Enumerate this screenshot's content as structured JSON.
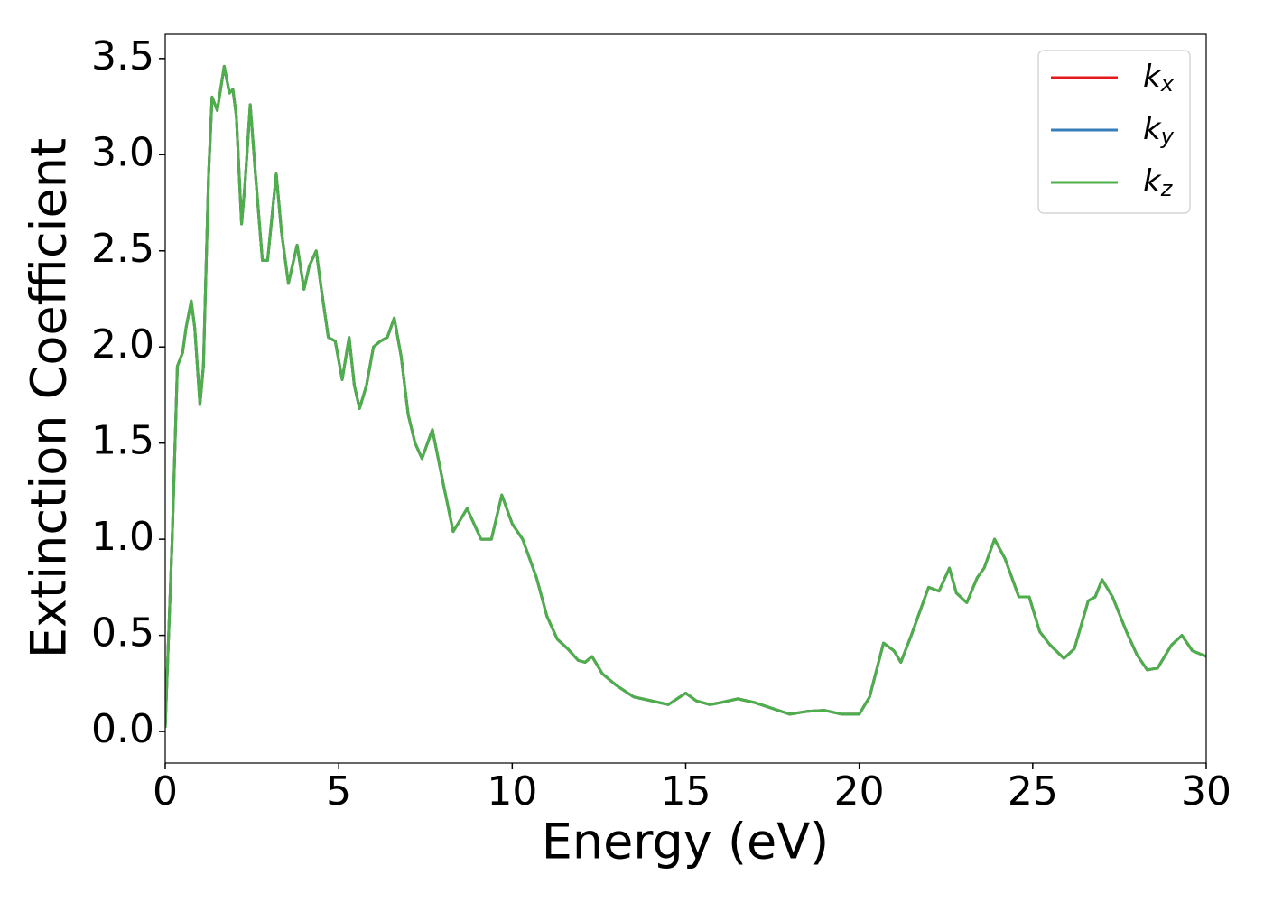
{
  "chart_data": {
    "type": "line",
    "xlabel": "Energy (eV)",
    "ylabel": "Extinction Coefficient",
    "x": [
      0,
      0.2,
      0.35,
      0.5,
      0.6,
      0.75,
      0.85,
      1.0,
      1.1,
      1.25,
      1.35,
      1.5,
      1.7,
      1.85,
      1.95,
      2.05,
      2.2,
      2.3,
      2.45,
      2.6,
      2.8,
      2.95,
      3.2,
      3.35,
      3.55,
      3.8,
      4.0,
      4.15,
      4.35,
      4.5,
      4.7,
      4.9,
      5.1,
      5.3,
      5.45,
      5.6,
      5.8,
      6.0,
      6.2,
      6.4,
      6.6,
      6.8,
      7.0,
      7.2,
      7.4,
      7.7,
      8.0,
      8.3,
      8.7,
      9.1,
      9.4,
      9.7,
      10.0,
      10.3,
      10.7,
      11.0,
      11.3,
      11.6,
      11.9,
      12.1,
      12.3,
      12.6,
      13.0,
      13.5,
      14.0,
      14.5,
      15.0,
      15.3,
      15.7,
      16.0,
      16.5,
      17.0,
      17.5,
      18.0,
      18.5,
      19.0,
      19.5,
      20.0,
      20.3,
      20.7,
      21.0,
      21.2,
      21.5,
      21.8,
      22.0,
      22.3,
      22.6,
      22.8,
      23.1,
      23.4,
      23.6,
      23.9,
      24.2,
      24.6,
      24.9,
      25.2,
      25.5,
      25.9,
      26.2,
      26.6,
      26.8,
      27.0,
      27.3,
      27.7,
      28.0,
      28.3,
      28.6,
      29.0,
      29.3,
      29.6,
      30.0
    ],
    "series": [
      {
        "name": "kx",
        "color": "#e41a1c",
        "values": [
          0.02,
          1.0,
          1.9,
          1.97,
          2.1,
          2.24,
          2.1,
          1.7,
          1.9,
          2.9,
          3.3,
          3.23,
          3.46,
          3.32,
          3.34,
          3.2,
          2.64,
          2.85,
          3.26,
          2.9,
          2.45,
          2.45,
          2.9,
          2.6,
          2.33,
          2.53,
          2.3,
          2.42,
          2.5,
          2.3,
          2.05,
          2.03,
          1.83,
          2.05,
          1.8,
          1.68,
          1.8,
          2.0,
          2.03,
          2.05,
          2.15,
          1.95,
          1.65,
          1.5,
          1.42,
          1.57,
          1.3,
          1.04,
          1.16,
          1.0,
          1.0,
          1.23,
          1.08,
          1.0,
          0.8,
          0.6,
          0.48,
          0.43,
          0.37,
          0.36,
          0.39,
          0.3,
          0.24,
          0.18,
          0.16,
          0.14,
          0.2,
          0.16,
          0.14,
          0.15,
          0.17,
          0.15,
          0.12,
          0.09,
          0.105,
          0.11,
          0.09,
          0.09,
          0.18,
          0.46,
          0.42,
          0.36,
          0.5,
          0.65,
          0.75,
          0.73,
          0.85,
          0.72,
          0.67,
          0.8,
          0.85,
          1.0,
          0.9,
          0.7,
          0.7,
          0.52,
          0.45,
          0.38,
          0.43,
          0.68,
          0.7,
          0.79,
          0.7,
          0.52,
          0.4,
          0.32,
          0.33,
          0.45,
          0.5,
          0.42,
          0.39
        ]
      },
      {
        "name": "ky",
        "color": "#377eb8",
        "values": [
          0.02,
          1.0,
          1.9,
          1.97,
          2.1,
          2.24,
          2.1,
          1.7,
          1.9,
          2.9,
          3.3,
          3.23,
          3.46,
          3.32,
          3.34,
          3.2,
          2.64,
          2.85,
          3.26,
          2.9,
          2.45,
          2.45,
          2.9,
          2.6,
          2.33,
          2.53,
          2.3,
          2.42,
          2.5,
          2.3,
          2.05,
          2.03,
          1.83,
          2.05,
          1.8,
          1.68,
          1.8,
          2.0,
          2.03,
          2.05,
          2.15,
          1.95,
          1.65,
          1.5,
          1.42,
          1.57,
          1.3,
          1.04,
          1.16,
          1.0,
          1.0,
          1.23,
          1.08,
          1.0,
          0.8,
          0.6,
          0.48,
          0.43,
          0.37,
          0.36,
          0.39,
          0.3,
          0.24,
          0.18,
          0.16,
          0.14,
          0.2,
          0.16,
          0.14,
          0.15,
          0.17,
          0.15,
          0.12,
          0.09,
          0.105,
          0.11,
          0.09,
          0.09,
          0.18,
          0.46,
          0.42,
          0.36,
          0.5,
          0.65,
          0.75,
          0.73,
          0.85,
          0.72,
          0.67,
          0.8,
          0.85,
          1.0,
          0.9,
          0.7,
          0.7,
          0.52,
          0.45,
          0.38,
          0.43,
          0.68,
          0.7,
          0.79,
          0.7,
          0.52,
          0.4,
          0.32,
          0.33,
          0.45,
          0.5,
          0.42,
          0.39
        ]
      },
      {
        "name": "kz",
        "color": "#4daf4a",
        "values": [
          0.02,
          1.0,
          1.9,
          1.97,
          2.1,
          2.24,
          2.1,
          1.7,
          1.9,
          2.9,
          3.3,
          3.23,
          3.46,
          3.32,
          3.34,
          3.2,
          2.64,
          2.85,
          3.26,
          2.9,
          2.45,
          2.45,
          2.9,
          2.6,
          2.33,
          2.53,
          2.3,
          2.42,
          2.5,
          2.3,
          2.05,
          2.03,
          1.83,
          2.05,
          1.8,
          1.68,
          1.8,
          2.0,
          2.03,
          2.05,
          2.15,
          1.95,
          1.65,
          1.5,
          1.42,
          1.57,
          1.3,
          1.04,
          1.16,
          1.0,
          1.0,
          1.23,
          1.08,
          1.0,
          0.8,
          0.6,
          0.48,
          0.43,
          0.37,
          0.36,
          0.39,
          0.3,
          0.24,
          0.18,
          0.16,
          0.14,
          0.2,
          0.16,
          0.14,
          0.15,
          0.17,
          0.15,
          0.12,
          0.09,
          0.105,
          0.11,
          0.09,
          0.09,
          0.18,
          0.46,
          0.42,
          0.36,
          0.5,
          0.65,
          0.75,
          0.73,
          0.85,
          0.72,
          0.67,
          0.8,
          0.85,
          1.0,
          0.9,
          0.7,
          0.7,
          0.52,
          0.45,
          0.38,
          0.43,
          0.68,
          0.7,
          0.79,
          0.7,
          0.52,
          0.4,
          0.32,
          0.33,
          0.45,
          0.5,
          0.42,
          0.39
        ]
      }
    ],
    "xlim": [
      0,
      30
    ],
    "xticks": [
      0,
      5,
      10,
      15,
      20,
      25,
      30
    ],
    "ylim": [
      -0.164,
      3.626
    ],
    "yticks": [
      {
        "value": 0,
        "label": "0.0"
      },
      0.5,
      {
        "value": 1,
        "label": "1.0"
      },
      1.5,
      {
        "value": 2,
        "label": "2.0"
      },
      2.5,
      {
        "value": 3,
        "label": "3.0"
      },
      3.5
    ],
    "grid": false,
    "legend": "upper right"
  }
}
